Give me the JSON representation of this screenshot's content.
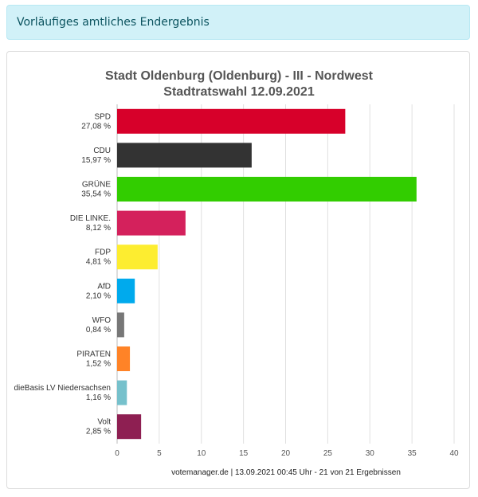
{
  "alert": {
    "text": "Vorläufiges amtliches Endergebnis"
  },
  "chart_data": {
    "type": "bar",
    "orientation": "horizontal",
    "title": "Stadt Oldenburg (Oldenburg) - III - Nordwest",
    "subtitle": "Stadtratswahl 12.09.2021",
    "categories": [
      "SPD",
      "CDU",
      "GRÜNE",
      "DIE LINKE.",
      "FDP",
      "AfD",
      "WFO",
      "PIRATEN",
      "dieBasis LV Niedersachsen",
      "Volt"
    ],
    "value_labels": [
      "27,08 %",
      "15,97 %",
      "35,54 %",
      "8,12 %",
      "4,81 %",
      "2,10 %",
      "0,84 %",
      "1,52 %",
      "1,16 %",
      "2,85 %"
    ],
    "values": [
      27.08,
      15.97,
      35.54,
      8.12,
      4.81,
      2.1,
      0.84,
      1.52,
      1.16,
      2.85
    ],
    "colors": [
      "#d7002a",
      "#333333",
      "#32cd00",
      "#d4215c",
      "#fded30",
      "#00aaed",
      "#777777",
      "#ff8327",
      "#76c1cc",
      "#8e1f52"
    ],
    "xlim": [
      0,
      40
    ],
    "x_ticks": [
      0,
      5,
      10,
      15,
      20,
      25,
      30,
      35,
      40
    ],
    "grid": true,
    "footer": "votemanager.de | 13.09.2021 00:45 Uhr - 21 von 21 Ergebnissen"
  }
}
